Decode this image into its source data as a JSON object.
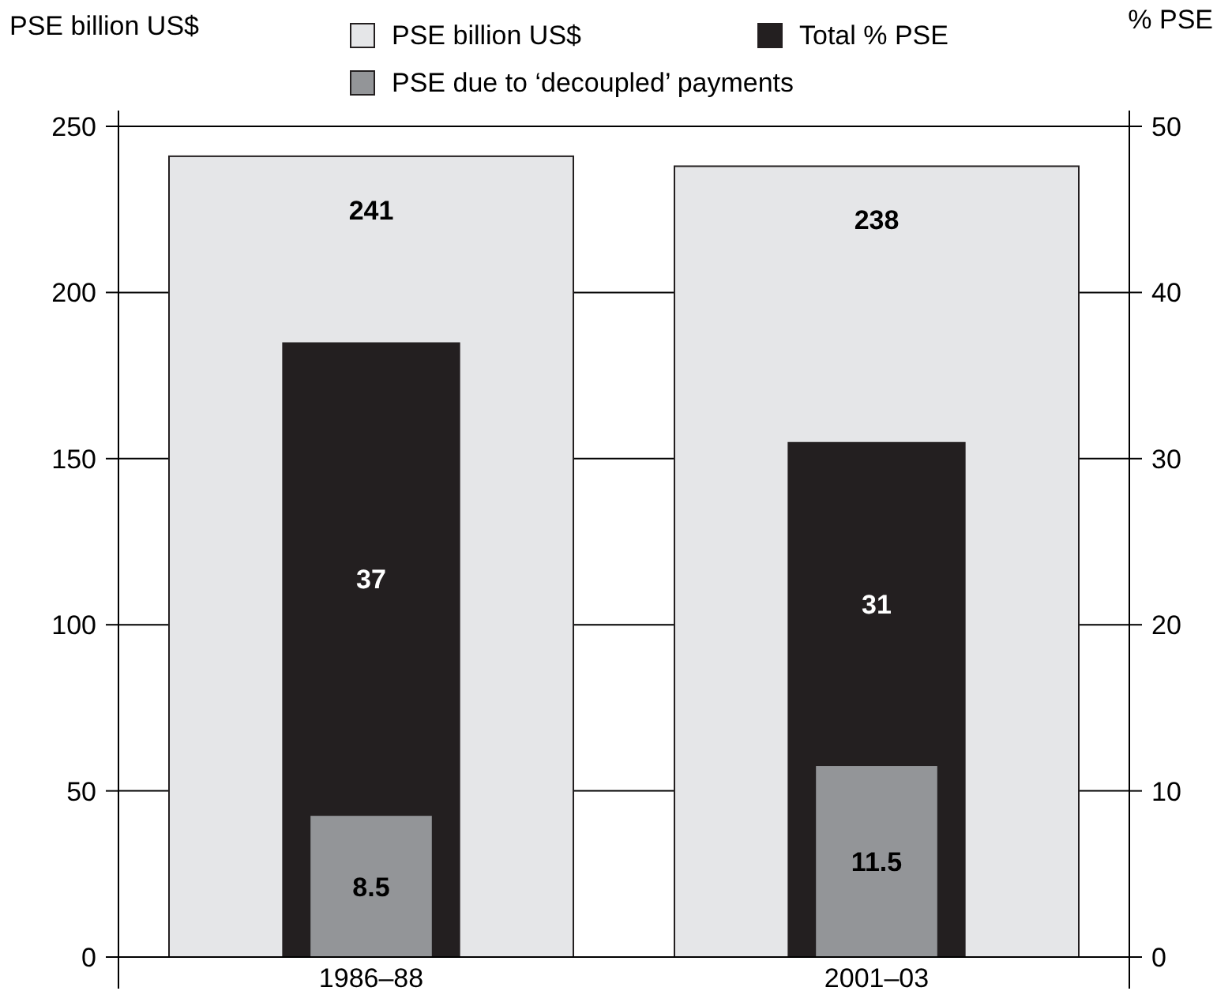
{
  "chart_data": {
    "type": "bar",
    "categories": [
      "1986–88",
      "2001–03"
    ],
    "series": [
      {
        "name": "PSE billion US$",
        "color": "#e5e6e8",
        "values": [
          241,
          238
        ]
      },
      {
        "name": "Total % PSE",
        "color": "#231f20",
        "values": [
          37,
          31
        ],
        "axis": "y2"
      },
      {
        "name": "PSE due to ‘decoupled’ payments",
        "color": "#939598",
        "values": [
          8.5,
          11.5
        ],
        "axis": "y2"
      }
    ],
    "ylabel": "PSE billion US$",
    "y2label": "% PSE",
    "ylim": [
      0,
      250
    ],
    "yticks": [
      0,
      50,
      100,
      150,
      200,
      250
    ],
    "y2lim": [
      0,
      50
    ],
    "y2ticks": [
      0,
      10,
      20,
      30,
      40,
      50
    ],
    "grid": "y",
    "legend": "top",
    "data_labels": true
  }
}
